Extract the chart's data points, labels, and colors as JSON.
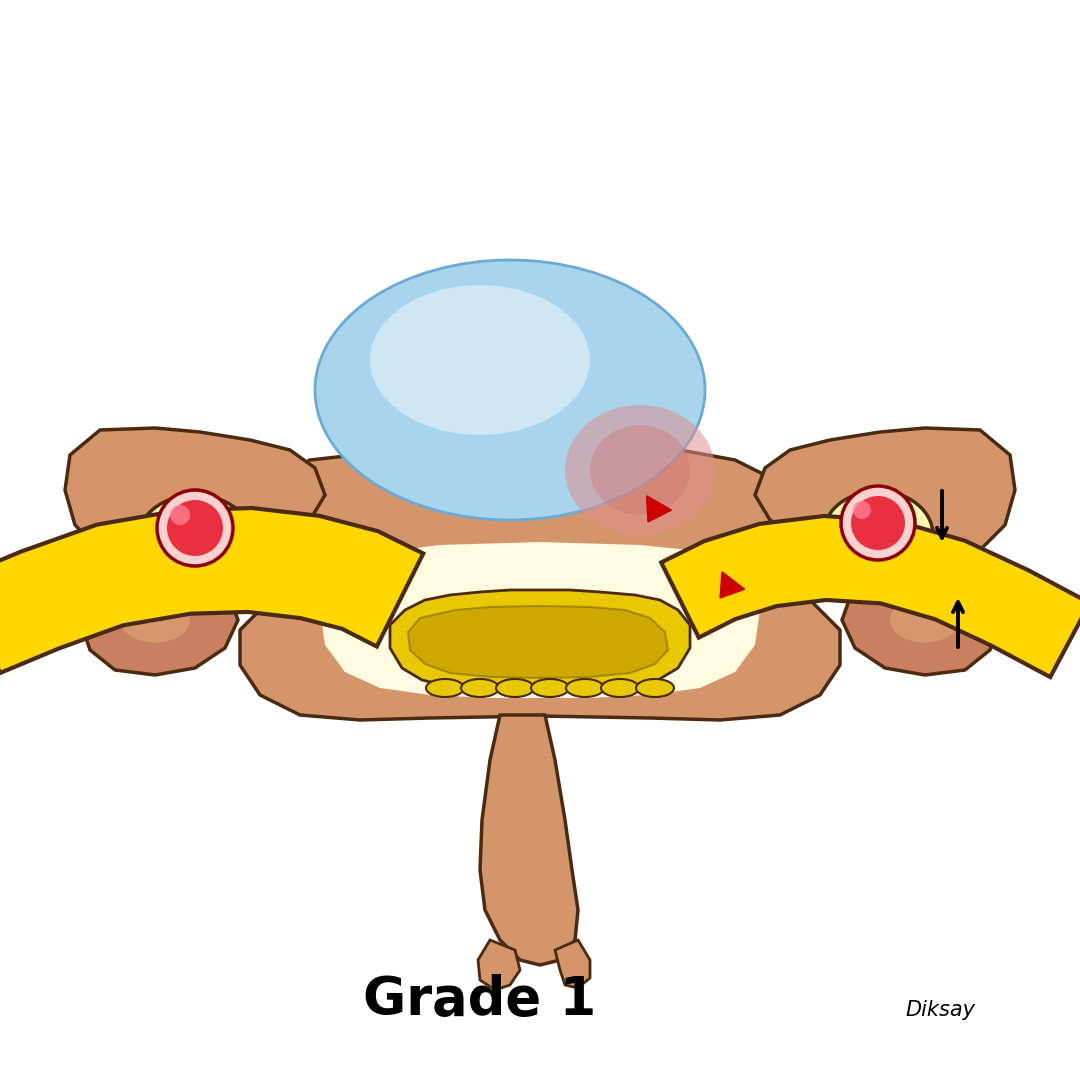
{
  "title": "Grade 1",
  "title_fontsize": 38,
  "title_fontweight": "bold",
  "bg": "#ffffff",
  "vert_fill": "#D4956A",
  "vert_edge": "#4a2a10",
  "vert_light": "#E8B090",
  "disc_fill": "#A8D4EC",
  "disc_edge": "#6AAAD4",
  "canal_fill": "#FFFBE0",
  "nerve_fill": "#FFD700",
  "nerve_edge": "#4a2a10",
  "cord_fill": "#E8C800",
  "cord_dark": "#B89000",
  "red_arrow": "#CC0000",
  "black": "#000000",
  "facet_fill": "#C88060",
  "facet_light": "#E0A878"
}
